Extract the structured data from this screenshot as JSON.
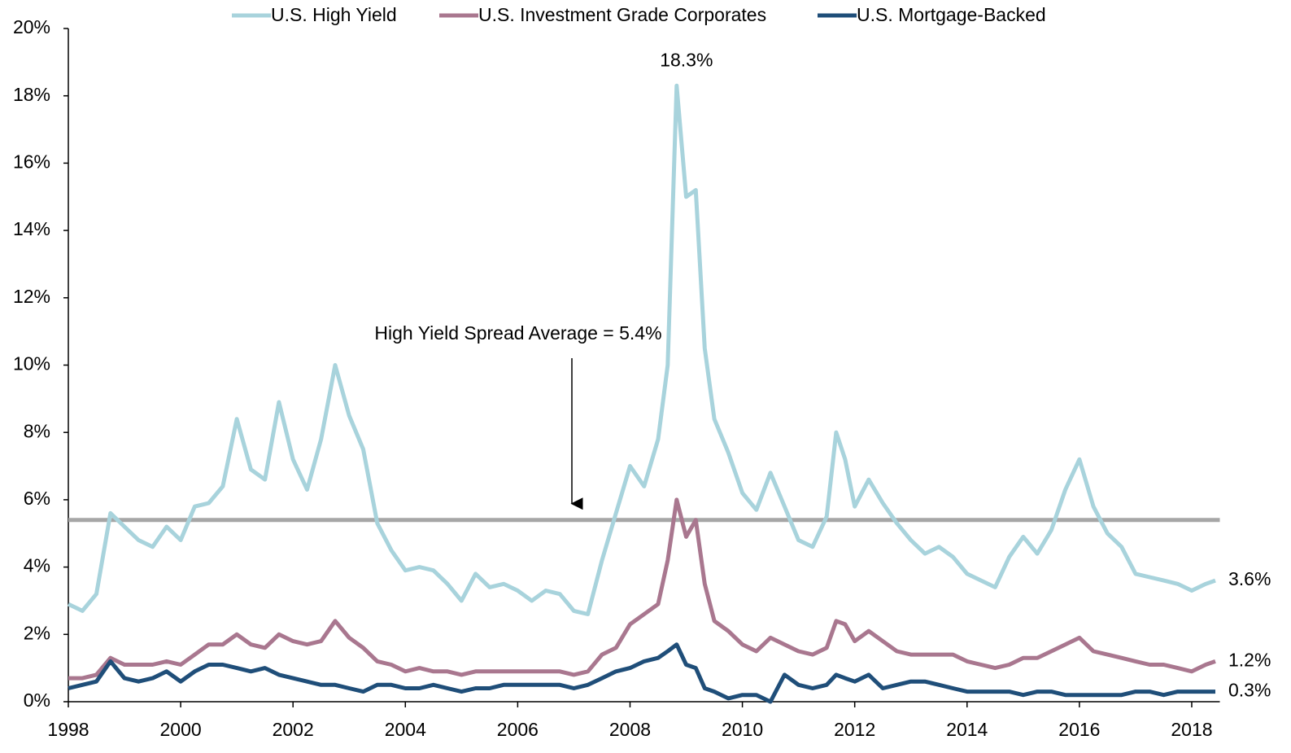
{
  "chart_data": {
    "type": "line",
    "x": [
      1998,
      1998.25,
      1998.5,
      1998.75,
      1999,
      1999.25,
      1999.5,
      1999.75,
      2000,
      2000.25,
      2000.5,
      2000.75,
      2001,
      2001.25,
      2001.5,
      2001.75,
      2002,
      2002.25,
      2002.5,
      2002.75,
      2003,
      2003.25,
      2003.5,
      2003.75,
      2004,
      2004.25,
      2004.5,
      2004.75,
      2005,
      2005.25,
      2005.5,
      2005.75,
      2006,
      2006.25,
      2006.5,
      2006.75,
      2007,
      2007.25,
      2007.5,
      2007.75,
      2008,
      2008.25,
      2008.5,
      2008.67,
      2008.83,
      2009,
      2009.17,
      2009.33,
      2009.5,
      2009.75,
      2010,
      2010.25,
      2010.5,
      2010.75,
      2011,
      2011.25,
      2011.5,
      2011.67,
      2011.83,
      2012,
      2012.25,
      2012.5,
      2012.75,
      2013,
      2013.25,
      2013.5,
      2013.75,
      2014,
      2014.25,
      2014.5,
      2014.75,
      2015,
      2015.25,
      2015.5,
      2015.75,
      2016,
      2016.25,
      2016.5,
      2016.75,
      2017,
      2017.25,
      2017.5,
      2017.75,
      2018,
      2018.25,
      2018.42
    ],
    "series": [
      {
        "name": "U.S. High Yield",
        "color": "#a8d3dc",
        "end_label": "3.6%",
        "peak_label": "18.3%",
        "values": [
          2.9,
          2.7,
          3.2,
          5.6,
          5.2,
          4.8,
          4.6,
          5.2,
          4.8,
          5.8,
          5.9,
          6.4,
          8.4,
          6.9,
          6.6,
          8.9,
          7.2,
          6.3,
          7.8,
          10.0,
          8.5,
          7.5,
          5.3,
          4.5,
          3.9,
          4.0,
          3.9,
          3.5,
          3.0,
          3.8,
          3.4,
          3.5,
          3.3,
          3.0,
          3.3,
          3.2,
          2.7,
          2.6,
          4.2,
          5.6,
          7.0,
          6.4,
          7.8,
          10.0,
          18.3,
          15.0,
          15.2,
          10.5,
          8.4,
          7.4,
          6.2,
          5.7,
          6.8,
          5.8,
          4.8,
          4.6,
          5.5,
          8.0,
          7.2,
          5.8,
          6.6,
          5.9,
          5.3,
          4.8,
          4.4,
          4.6,
          4.3,
          3.8,
          3.6,
          3.4,
          4.3,
          4.9,
          4.4,
          5.1,
          6.3,
          7.2,
          5.8,
          5.0,
          4.6,
          3.8,
          3.7,
          3.6,
          3.5,
          3.3,
          3.5,
          3.6
        ]
      },
      {
        "name": "U.S. Investment Grade Corporates",
        "color": "#a9778f",
        "end_label": "1.2%",
        "values": [
          0.7,
          0.7,
          0.8,
          1.3,
          1.1,
          1.1,
          1.1,
          1.2,
          1.1,
          1.4,
          1.7,
          1.7,
          2.0,
          1.7,
          1.6,
          2.0,
          1.8,
          1.7,
          1.8,
          2.4,
          1.9,
          1.6,
          1.2,
          1.1,
          0.9,
          1.0,
          0.9,
          0.9,
          0.8,
          0.9,
          0.9,
          0.9,
          0.9,
          0.9,
          0.9,
          0.9,
          0.8,
          0.9,
          1.4,
          1.6,
          2.3,
          2.6,
          2.9,
          4.2,
          6.0,
          4.9,
          5.4,
          3.5,
          2.4,
          2.1,
          1.7,
          1.5,
          1.9,
          1.7,
          1.5,
          1.4,
          1.6,
          2.4,
          2.3,
          1.8,
          2.1,
          1.8,
          1.5,
          1.4,
          1.4,
          1.4,
          1.4,
          1.2,
          1.1,
          1.0,
          1.1,
          1.3,
          1.3,
          1.5,
          1.7,
          1.9,
          1.5,
          1.4,
          1.3,
          1.2,
          1.1,
          1.1,
          1.0,
          0.9,
          1.1,
          1.2
        ]
      },
      {
        "name": "U.S. Mortgage-Backed",
        "color": "#1f4e79",
        "end_label": "0.3%",
        "values": [
          0.4,
          0.5,
          0.6,
          1.2,
          0.7,
          0.6,
          0.7,
          0.9,
          0.6,
          0.9,
          1.1,
          1.1,
          1.0,
          0.9,
          1.0,
          0.8,
          0.7,
          0.6,
          0.5,
          0.5,
          0.4,
          0.3,
          0.5,
          0.5,
          0.4,
          0.4,
          0.5,
          0.4,
          0.3,
          0.4,
          0.4,
          0.5,
          0.5,
          0.5,
          0.5,
          0.5,
          0.4,
          0.5,
          0.7,
          0.9,
          1.0,
          1.2,
          1.3,
          1.5,
          1.7,
          1.1,
          1.0,
          0.4,
          0.3,
          0.1,
          0.2,
          0.2,
          0.0,
          0.8,
          0.5,
          0.4,
          0.5,
          0.8,
          0.7,
          0.6,
          0.8,
          0.4,
          0.5,
          0.6,
          0.6,
          0.5,
          0.4,
          0.3,
          0.3,
          0.3,
          0.3,
          0.2,
          0.3,
          0.3,
          0.2,
          0.2,
          0.2,
          0.2,
          0.2,
          0.3,
          0.3,
          0.2,
          0.3,
          0.3,
          0.3,
          0.3
        ]
      }
    ],
    "average_line": {
      "value": 5.4,
      "label": "High Yield Spread Average =  5.4%",
      "color": "#a6a6a6"
    },
    "xlim": [
      1998,
      2018.5
    ],
    "xticks": [
      1998,
      2000,
      2002,
      2004,
      2006,
      2008,
      2010,
      2012,
      2014,
      2016,
      2018
    ],
    "ylim": [
      0,
      20
    ],
    "yticks": [
      {
        "value": 0,
        "label": "0%"
      },
      {
        "value": 2,
        "label": "2%"
      },
      {
        "value": 4,
        "label": "4%"
      },
      {
        "value": 6,
        "label": "6%"
      },
      {
        "value": 8,
        "label": "8%"
      },
      {
        "value": 10,
        "label": "10%"
      },
      {
        "value": 12,
        "label": "12%"
      },
      {
        "value": 14,
        "label": "14%"
      },
      {
        "value": 16,
        "label": "16%"
      },
      {
        "value": 18,
        "label": "18%"
      },
      {
        "value": 20,
        "label": "20%"
      }
    ],
    "legend": "top"
  }
}
